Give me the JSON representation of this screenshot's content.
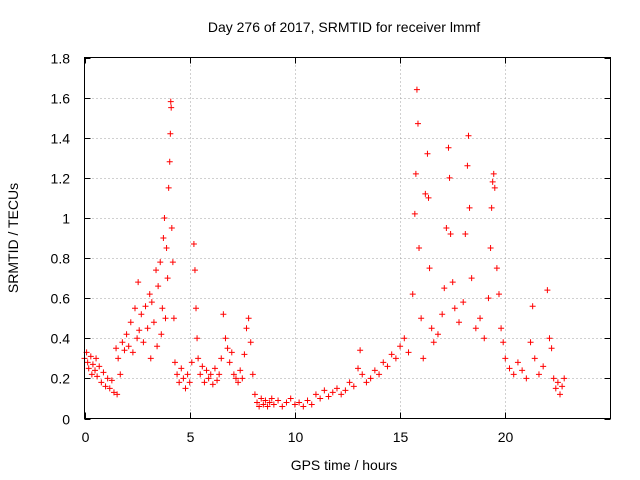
{
  "chart_data": {
    "type": "scatter",
    "title": "Day 276 of 2017, SRMTID for receiver lmmf",
    "xlabel": "GPS time / hours",
    "ylabel": "SRMTID / TECUs",
    "xlim": [
      0,
      25
    ],
    "ylim": [
      0,
      1.8
    ],
    "x_ticks": [
      "0",
      "5",
      "10",
      "15",
      "20"
    ],
    "y_ticks": [
      "0",
      "0.2",
      "0.4",
      "0.6",
      "0.8",
      "1",
      "1.2",
      "1.4",
      "1.6",
      "1.8"
    ],
    "grid": true,
    "marker": "+",
    "color": "#ff0000",
    "series": [
      {
        "name": "SRMTID",
        "points": [
          [
            0.0,
            0.3
          ],
          [
            0.1,
            0.33
          ],
          [
            0.15,
            0.28
          ],
          [
            0.2,
            0.25
          ],
          [
            0.3,
            0.31
          ],
          [
            0.35,
            0.22
          ],
          [
            0.4,
            0.27
          ],
          [
            0.5,
            0.24
          ],
          [
            0.55,
            0.3
          ],
          [
            0.6,
            0.21
          ],
          [
            0.7,
            0.26
          ],
          [
            0.8,
            0.18
          ],
          [
            0.9,
            0.23
          ],
          [
            1.0,
            0.16
          ],
          [
            1.1,
            0.2
          ],
          [
            1.2,
            0.15
          ],
          [
            1.3,
            0.19
          ],
          [
            1.4,
            0.13
          ],
          [
            1.5,
            0.35
          ],
          [
            1.55,
            0.12
          ],
          [
            1.6,
            0.3
          ],
          [
            1.7,
            0.22
          ],
          [
            1.8,
            0.38
          ],
          [
            1.9,
            0.34
          ],
          [
            2.0,
            0.42
          ],
          [
            2.1,
            0.36
          ],
          [
            2.2,
            0.48
          ],
          [
            2.3,
            0.33
          ],
          [
            2.4,
            0.55
          ],
          [
            2.5,
            0.4
          ],
          [
            2.55,
            0.68
          ],
          [
            2.6,
            0.44
          ],
          [
            2.7,
            0.52
          ],
          [
            2.8,
            0.38
          ],
          [
            2.9,
            0.56
          ],
          [
            3.0,
            0.45
          ],
          [
            3.1,
            0.62
          ],
          [
            3.15,
            0.3
          ],
          [
            3.2,
            0.58
          ],
          [
            3.3,
            0.48
          ],
          [
            3.4,
            0.74
          ],
          [
            3.45,
            0.36
          ],
          [
            3.5,
            0.66
          ],
          [
            3.6,
            0.78
          ],
          [
            3.65,
            0.42
          ],
          [
            3.7,
            0.55
          ],
          [
            3.75,
            0.9
          ],
          [
            3.8,
            1.0
          ],
          [
            3.85,
            0.5
          ],
          [
            3.9,
            0.85
          ],
          [
            3.95,
            0.7
          ],
          [
            4.0,
            1.15
          ],
          [
            4.05,
            1.28
          ],
          [
            4.08,
            1.42
          ],
          [
            4.1,
            1.58
          ],
          [
            4.12,
            1.55
          ],
          [
            4.15,
            0.95
          ],
          [
            4.2,
            0.78
          ],
          [
            4.25,
            0.5
          ],
          [
            4.3,
            0.28
          ],
          [
            4.4,
            0.22
          ],
          [
            4.5,
            0.18
          ],
          [
            4.6,
            0.25
          ],
          [
            4.7,
            0.2
          ],
          [
            4.8,
            0.15
          ],
          [
            4.9,
            0.22
          ],
          [
            5.0,
            0.18
          ],
          [
            5.1,
            0.28
          ],
          [
            5.2,
            0.87
          ],
          [
            5.25,
            0.74
          ],
          [
            5.3,
            0.55
          ],
          [
            5.35,
            0.4
          ],
          [
            5.4,
            0.3
          ],
          [
            5.5,
            0.22
          ],
          [
            5.6,
            0.26
          ],
          [
            5.7,
            0.18
          ],
          [
            5.8,
            0.24
          ],
          [
            5.9,
            0.2
          ],
          [
            6.0,
            0.22
          ],
          [
            6.1,
            0.17
          ],
          [
            6.2,
            0.25
          ],
          [
            6.3,
            0.19
          ],
          [
            6.4,
            0.22
          ],
          [
            6.5,
            0.3
          ],
          [
            6.6,
            0.52
          ],
          [
            6.7,
            0.4
          ],
          [
            6.8,
            0.35
          ],
          [
            6.9,
            0.28
          ],
          [
            7.0,
            0.33
          ],
          [
            7.1,
            0.22
          ],
          [
            7.2,
            0.2
          ],
          [
            7.3,
            0.18
          ],
          [
            7.4,
            0.24
          ],
          [
            7.5,
            0.2
          ],
          [
            7.6,
            0.32
          ],
          [
            7.7,
            0.45
          ],
          [
            7.8,
            0.5
          ],
          [
            7.9,
            0.38
          ],
          [
            8.0,
            0.22
          ],
          [
            8.1,
            0.12
          ],
          [
            8.2,
            0.08
          ],
          [
            8.3,
            0.06
          ],
          [
            8.4,
            0.1
          ],
          [
            8.5,
            0.07
          ],
          [
            8.6,
            0.09
          ],
          [
            8.7,
            0.06
          ],
          [
            8.8,
            0.08
          ],
          [
            8.9,
            0.1
          ],
          [
            9.0,
            0.07
          ],
          [
            9.2,
            0.09
          ],
          [
            9.4,
            0.06
          ],
          [
            9.6,
            0.08
          ],
          [
            9.8,
            0.1
          ],
          [
            10.0,
            0.07
          ],
          [
            10.2,
            0.08
          ],
          [
            10.4,
            0.06
          ],
          [
            10.6,
            0.09
          ],
          [
            10.8,
            0.07
          ],
          [
            11.0,
            0.12
          ],
          [
            11.2,
            0.1
          ],
          [
            11.4,
            0.14
          ],
          [
            11.6,
            0.11
          ],
          [
            11.8,
            0.13
          ],
          [
            12.0,
            0.15
          ],
          [
            12.2,
            0.12
          ],
          [
            12.4,
            0.14
          ],
          [
            12.6,
            0.18
          ],
          [
            12.8,
            0.16
          ],
          [
            13.0,
            0.25
          ],
          [
            13.1,
            0.34
          ],
          [
            13.2,
            0.22
          ],
          [
            13.4,
            0.18
          ],
          [
            13.6,
            0.2
          ],
          [
            13.8,
            0.24
          ],
          [
            14.0,
            0.22
          ],
          [
            14.2,
            0.28
          ],
          [
            14.4,
            0.26
          ],
          [
            14.6,
            0.32
          ],
          [
            14.8,
            0.3
          ],
          [
            15.0,
            0.36
          ],
          [
            15.2,
            0.4
          ],
          [
            15.4,
            0.33
          ],
          [
            15.6,
            0.62
          ],
          [
            15.7,
            1.02
          ],
          [
            15.75,
            1.22
          ],
          [
            15.8,
            1.64
          ],
          [
            15.85,
            1.47
          ],
          [
            15.9,
            0.85
          ],
          [
            16.0,
            0.5
          ],
          [
            16.1,
            0.3
          ],
          [
            16.2,
            1.12
          ],
          [
            16.3,
            1.32
          ],
          [
            16.35,
            1.1
          ],
          [
            16.4,
            0.75
          ],
          [
            16.5,
            0.45
          ],
          [
            16.6,
            0.38
          ],
          [
            16.8,
            0.42
          ],
          [
            17.0,
            0.52
          ],
          [
            17.1,
            0.65
          ],
          [
            17.2,
            0.95
          ],
          [
            17.3,
            1.35
          ],
          [
            17.35,
            1.2
          ],
          [
            17.4,
            0.92
          ],
          [
            17.5,
            0.68
          ],
          [
            17.6,
            0.55
          ],
          [
            17.8,
            0.48
          ],
          [
            18.0,
            0.58
          ],
          [
            18.1,
            0.92
          ],
          [
            18.2,
            1.26
          ],
          [
            18.25,
            1.41
          ],
          [
            18.3,
            1.05
          ],
          [
            18.4,
            0.7
          ],
          [
            18.6,
            0.45
          ],
          [
            18.8,
            0.5
          ],
          [
            19.0,
            0.4
          ],
          [
            19.2,
            0.6
          ],
          [
            19.3,
            0.85
          ],
          [
            19.35,
            1.05
          ],
          [
            19.4,
            1.18
          ],
          [
            19.45,
            1.22
          ],
          [
            19.5,
            1.15
          ],
          [
            19.6,
            0.75
          ],
          [
            19.7,
            0.62
          ],
          [
            19.8,
            0.45
          ],
          [
            19.9,
            0.38
          ],
          [
            20.0,
            0.3
          ],
          [
            20.2,
            0.25
          ],
          [
            20.4,
            0.22
          ],
          [
            20.6,
            0.28
          ],
          [
            20.8,
            0.24
          ],
          [
            21.0,
            0.2
          ],
          [
            21.2,
            0.38
          ],
          [
            21.3,
            0.56
          ],
          [
            21.4,
            0.3
          ],
          [
            21.6,
            0.22
          ],
          [
            21.8,
            0.26
          ],
          [
            22.0,
            0.64
          ],
          [
            22.1,
            0.4
          ],
          [
            22.2,
            0.35
          ],
          [
            22.3,
            0.2
          ],
          [
            22.4,
            0.15
          ],
          [
            22.5,
            0.18
          ],
          [
            22.6,
            0.12
          ],
          [
            22.7,
            0.16
          ],
          [
            22.8,
            0.2
          ]
        ]
      }
    ]
  }
}
